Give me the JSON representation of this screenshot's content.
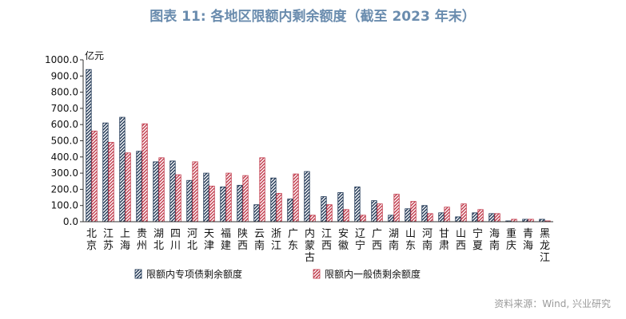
{
  "chart_data": {
    "type": "bar",
    "title": "图表 11: 各地区限额内剩余额度（截至 2023 年末）",
    "unit": "亿元",
    "ylim": [
      0,
      1000
    ],
    "yticks": [
      "0.0",
      "100.0",
      "200.0",
      "300.0",
      "400.0",
      "500.0",
      "600.0",
      "700.0",
      "800.0",
      "900.0",
      "1000.0"
    ],
    "categories": [
      "北京",
      "江苏",
      "上海",
      "贵州",
      "湖北",
      "四川",
      "河北",
      "天津",
      "福建",
      "陕西",
      "云南",
      "浙江",
      "广东",
      "内蒙古",
      "江西",
      "安徽",
      "辽宁",
      "广西",
      "湖南",
      "山东",
      "河南",
      "甘肃",
      "山西",
      "宁夏",
      "海南",
      "重庆",
      "青海",
      "黑龙江"
    ],
    "series": [
      {
        "name": "限额内专项债剩余额度",
        "values": [
          940,
          610,
          645,
          435,
          370,
          375,
          255,
          300,
          215,
          225,
          105,
          270,
          140,
          310,
          155,
          180,
          215,
          130,
          40,
          80,
          100,
          55,
          30,
          55,
          50,
          5,
          15,
          15
        ],
        "color": "#1f3654",
        "pattern": "dark-hatch"
      },
      {
        "name": "限额内一般债剩余额度",
        "values": [
          560,
          490,
          425,
          605,
          395,
          290,
          370,
          220,
          300,
          285,
          395,
          175,
          295,
          40,
          105,
          75,
          40,
          110,
          170,
          125,
          50,
          90,
          110,
          75,
          50,
          15,
          15,
          5
        ],
        "color": "#c0394a",
        "pattern": "red-hatch"
      }
    ],
    "legend": "bottom",
    "grid": false
  },
  "source": "资料来源：Wind, 兴业研究"
}
